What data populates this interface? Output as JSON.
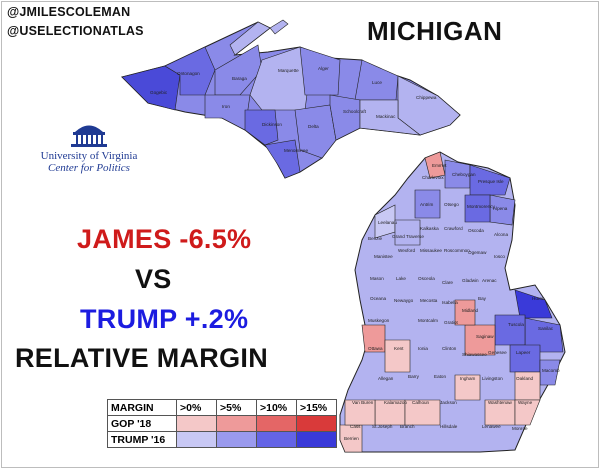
{
  "handles": [
    "@JMILESCOLEMAN",
    "@USELECTIONATLAS"
  ],
  "title": "MICHIGAN",
  "logo": {
    "line1": "University of Virginia",
    "line2": "Center for Politics"
  },
  "comparison": {
    "candidate1": "JAMES -6.5%",
    "vs": "VS",
    "candidate2": "TRUMP +.2%",
    "subtitle": "RELATIVE MARGIN"
  },
  "legend": {
    "header": "MARGIN",
    "bins": [
      ">0%",
      ">5%",
      ">10%",
      ">15%"
    ],
    "rows": [
      {
        "label": "GOP '18",
        "colors": [
          "#f4c8c8",
          "#ee9a9a",
          "#e46666",
          "#d93a3a"
        ]
      },
      {
        "label": "TRUMP '16",
        "colors": [
          "#c8c8f4",
          "#9a9aee",
          "#6464e6",
          "#3a3ad9"
        ]
      }
    ]
  },
  "counties": [
    "Ontonagon",
    "Baraga",
    "Marquette",
    "Alger",
    "Luce",
    "Chippewa",
    "Iron",
    "Schoolcraft",
    "Delta",
    "Mackinac",
    "Gogebic",
    "Menominee",
    "Dickinson",
    "Charlevoix",
    "Emmet",
    "Cheboygan",
    "Presque Isle",
    "Antrim",
    "Otsego",
    "Montmorency",
    "Alpena",
    "Leelanau",
    "Grand Traverse",
    "Kalkaska",
    "Crawford",
    "Oscoda",
    "Alcona",
    "Benzie",
    "Wexford",
    "Roscommon",
    "Ogemaw",
    "Iosco",
    "Manistee",
    "Missaukee",
    "Arenac",
    "Mason",
    "Lake",
    "Osceola",
    "Clare",
    "Gladwin",
    "Huron",
    "Oceana",
    "Newaygo",
    "Mecosta",
    "Isabella",
    "Midland",
    "Bay",
    "Tuscola",
    "Sanilac",
    "Muskegon",
    "Montcalm",
    "Gratiot",
    "Saginaw",
    "Kent",
    "Ionia",
    "Clinton",
    "Shiawassee",
    "Genesee",
    "Lapeer",
    "Ottawa",
    "Barry",
    "Eaton",
    "Ingham",
    "Livingston",
    "Oakland",
    "Macomb",
    "Allegan",
    "Kalamazoo",
    "Calhoun",
    "Jackson",
    "Washtenaw",
    "Wayne",
    "Van Buren",
    "Cass",
    "St.Joseph",
    "Branch",
    "Hillsdale",
    "Lenawee",
    "Monroe",
    "Berrien"
  ]
}
